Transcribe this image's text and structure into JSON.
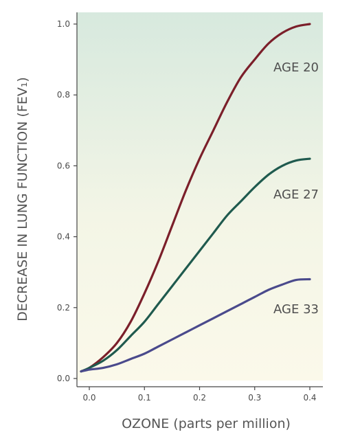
{
  "chart_data": {
    "type": "line",
    "title": "",
    "xlabel": "OZONE (parts per million)",
    "ylabel": "DECREASE IN LUNG FUNCTION (FEV₁)",
    "xlim": [
      -0.02,
      0.42
    ],
    "ylim": [
      0.0,
      1.0
    ],
    "x_ticks": [
      0.0,
      0.1,
      0.2,
      0.3,
      0.4
    ],
    "y_ticks": [
      0.0,
      0.2,
      0.4,
      0.6,
      0.8,
      1.0
    ],
    "x_tick_labels": [
      "0.0",
      "0.1",
      "0.2",
      "0.3",
      "0.4"
    ],
    "y_tick_labels": [
      "0.0",
      "0.2",
      "0.4",
      "0.6",
      "0.8",
      "1.0"
    ],
    "grid": false,
    "legend": "inline labels at right",
    "series": [
      {
        "name": "AGE 20",
        "color": "#7b1f2a",
        "x": [
          -0.015,
          0.0,
          0.025,
          0.05,
          0.075,
          0.1,
          0.125,
          0.15,
          0.175,
          0.2,
          0.225,
          0.25,
          0.275,
          0.3,
          0.325,
          0.35,
          0.375,
          0.4
        ],
        "values": [
          0.02,
          0.03,
          0.06,
          0.1,
          0.16,
          0.24,
          0.33,
          0.43,
          0.53,
          0.62,
          0.7,
          0.78,
          0.85,
          0.9,
          0.945,
          0.975,
          0.993,
          1.0
        ]
      },
      {
        "name": "AGE 27",
        "color": "#1f5a4e",
        "x": [
          -0.015,
          0.0,
          0.025,
          0.05,
          0.075,
          0.1,
          0.125,
          0.15,
          0.175,
          0.2,
          0.225,
          0.25,
          0.275,
          0.3,
          0.325,
          0.35,
          0.375,
          0.4
        ],
        "values": [
          0.02,
          0.03,
          0.05,
          0.08,
          0.12,
          0.16,
          0.21,
          0.26,
          0.31,
          0.36,
          0.41,
          0.46,
          0.5,
          0.54,
          0.575,
          0.6,
          0.615,
          0.62
        ]
      },
      {
        "name": "AGE 33",
        "color": "#4a4a8c",
        "x": [
          -0.015,
          0.0,
          0.025,
          0.05,
          0.075,
          0.1,
          0.125,
          0.15,
          0.175,
          0.2,
          0.225,
          0.25,
          0.275,
          0.3,
          0.325,
          0.35,
          0.375,
          0.4
        ],
        "values": [
          0.02,
          0.025,
          0.03,
          0.04,
          0.055,
          0.07,
          0.09,
          0.11,
          0.13,
          0.15,
          0.17,
          0.19,
          0.21,
          0.23,
          0.25,
          0.265,
          0.278,
          0.28
        ]
      }
    ]
  }
}
